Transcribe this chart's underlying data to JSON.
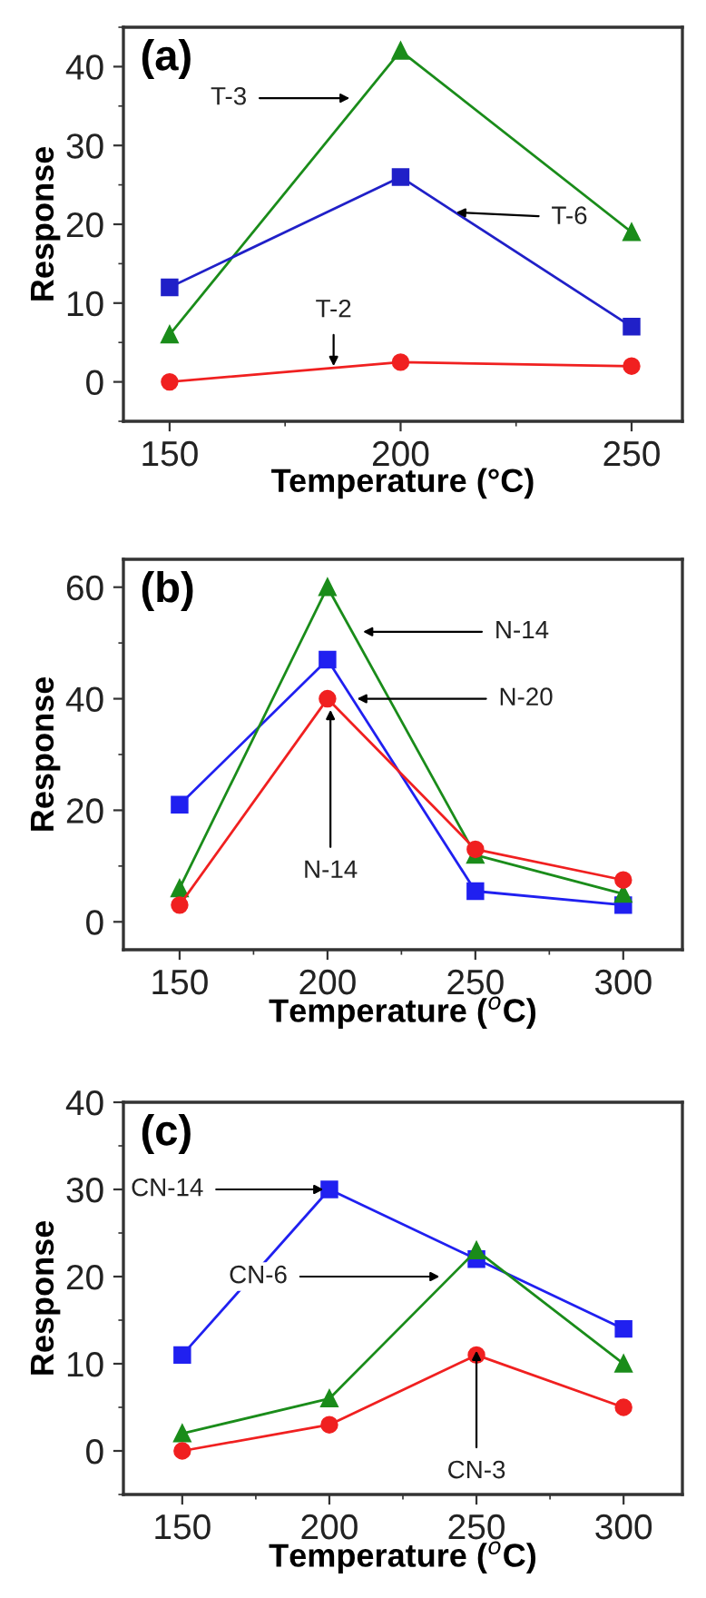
{
  "chart_data": [
    {
      "type": "line",
      "x": [
        150,
        200,
        250
      ],
      "xlabel": "Temperature (°C)",
      "ylabel": "Response",
      "xlim": [
        140,
        261
      ],
      "xticks": [
        150,
        200,
        250
      ],
      "ylim": [
        -5,
        45
      ],
      "yticks": [
        0,
        10,
        20,
        30,
        40
      ],
      "grid": false,
      "series": [
        {
          "color": "#1a8c1a",
          "marker": "triangle",
          "values": [
            6,
            42,
            19
          ]
        },
        {
          "color": "#2020c8",
          "marker": "square",
          "values": [
            12,
            26,
            7
          ]
        },
        {
          "color": "#f02020",
          "marker": "circle",
          "values": [
            0,
            2.5,
            2
          ]
        }
      ],
      "annotations": [
        "(a)",
        {
          "text": "T-3",
          "x": 189,
          "y": 36
        },
        {
          "text": "T-6",
          "x": 212,
          "y": 21.5
        },
        {
          "text": "T-2",
          "x": 185.5,
          "y": 2
        }
      ]
    },
    {
      "type": "line",
      "x": [
        150,
        200,
        250,
        300
      ],
      "xlabel": "Temperature ($^{o}$C)",
      "ylabel": "Response",
      "xlim": [
        131,
        320
      ],
      "xticks": [
        150,
        200,
        250,
        300
      ],
      "ylim": [
        -5,
        65
      ],
      "yticks": [
        0,
        20,
        40,
        60
      ],
      "grid": false,
      "series": [
        {
          "color": "#2020f0",
          "marker": "square",
          "values": [
            21,
            47,
            5.5,
            3
          ]
        },
        {
          "color": "#1a8c1a",
          "marker": "triangle",
          "values": [
            6,
            60,
            12,
            5
          ]
        },
        {
          "color": "#f02020",
          "marker": "circle",
          "values": [
            3,
            40,
            13,
            7.5
          ]
        }
      ],
      "annotations": [
        "(b)",
        {
          "text": "N-14",
          "x": 212,
          "y": 52
        },
        {
          "text": "N-20",
          "x": 210,
          "y": 40
        },
        {
          "text": "N-14",
          "x": 201,
          "y": 38
        }
      ]
    },
    {
      "type": "line",
      "x": [
        150,
        200,
        250,
        300
      ],
      "xlabel": "Temperature ($^{o}$C)",
      "ylabel": "Response",
      "xlim": [
        130,
        320
      ],
      "xticks": [
        150,
        200,
        250,
        300
      ],
      "ylim": [
        -5,
        40
      ],
      "yticks": [
        0,
        10,
        20,
        30,
        40
      ],
      "grid": false,
      "series": [
        {
          "color": "#2020f0",
          "marker": "square",
          "values": [
            11,
            30,
            22,
            14
          ]
        },
        {
          "color": "#1a8c1a",
          "marker": "triangle",
          "values": [
            2,
            6,
            23,
            10
          ]
        },
        {
          "color": "#f02020",
          "marker": "circle",
          "values": [
            0,
            3,
            11,
            5
          ]
        }
      ],
      "annotations": [
        "(c)",
        {
          "text": "CN-14",
          "x": 198,
          "y": 30
        },
        {
          "text": "CN-6",
          "x": 237.5,
          "y": 20
        },
        {
          "text": "CN-3",
          "x": 250,
          "y": 11.5
        }
      ]
    }
  ]
}
